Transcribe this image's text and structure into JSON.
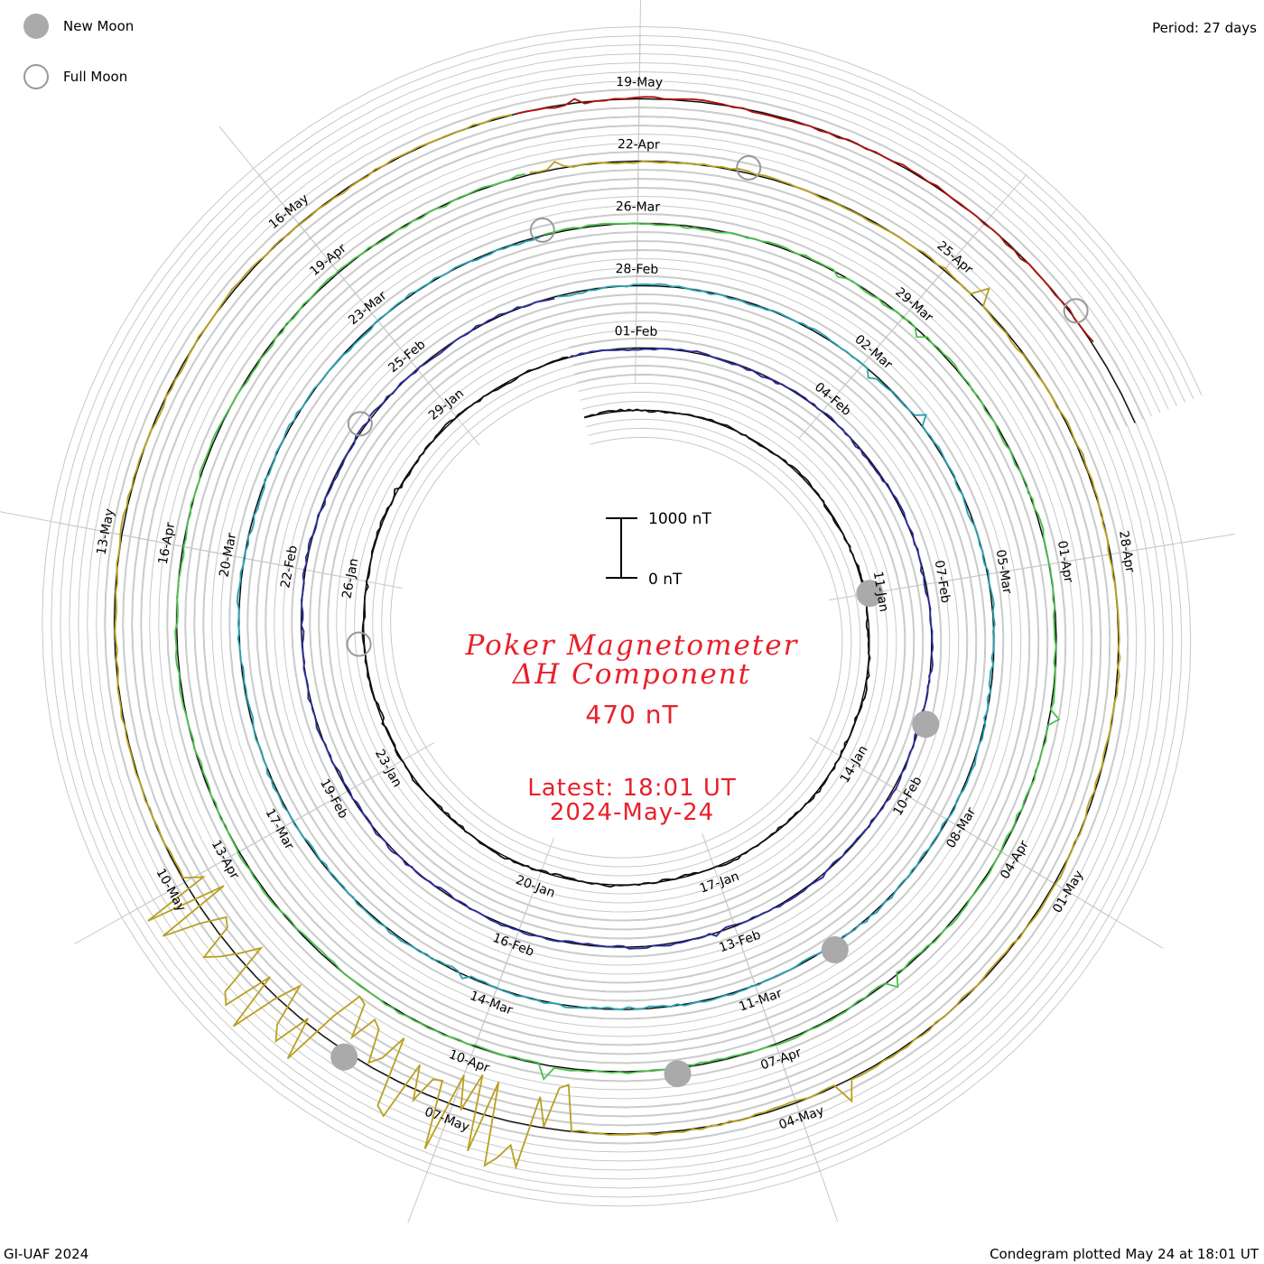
{
  "legend": {
    "new_moon_label": "New Moon",
    "full_moon_label": "Full Moon"
  },
  "period_text": "Period: 27 days",
  "footer_left": "GI-UAF 2024",
  "footer_right": "Condegram plotted May 24 at 18:01 UT",
  "title": {
    "line1": "Poker Magnetometer",
    "line2": "ΔH Component",
    "value": "470 nT",
    "latest": "Latest: 18:01 UT",
    "date": "2024-May-24"
  },
  "scale": {
    "top_label": "1000 nT",
    "bottom_label": "0 nT"
  },
  "colors": {
    "title": "#e8202a",
    "new_moon": "#aaaaaa",
    "full_moon": "#999999",
    "grid": "#bbbbbb"
  },
  "chart_data": {
    "type": "line",
    "chart_form": "spiral condegram (one revolution per 27-day period)",
    "period_days": 27,
    "unit": "nT",
    "scale_bar_nT": [
      0,
      1000
    ],
    "latest_value_nT": 470,
    "series": [
      {
        "color": "#111111",
        "start": "2024-Jan-04",
        "end": "2024-Jan-31",
        "typical_nT": 0,
        "peak_nT": 150
      },
      {
        "color": "#2a2a9a",
        "start": "2024-Jan-31",
        "end": "2024-Feb-27",
        "typical_nT": 0,
        "peak_nT": 250
      },
      {
        "color": "#2aa0b0",
        "start": "2024-Feb-27",
        "end": "2024-Mar-25",
        "typical_nT": 0,
        "peak_nT": 600
      },
      {
        "color": "#4cc04c",
        "start": "2024-Mar-25",
        "end": "2024-Apr-21",
        "typical_nT": 0,
        "peak_nT": 800
      },
      {
        "color": "#b8a020",
        "start": "2024-Apr-21",
        "end": "2024-May-18",
        "typical_nT": 0,
        "peak_nT": 1800
      },
      {
        "color": "#b01010",
        "start": "2024-May-18",
        "end": "2024-May-24",
        "typical_nT": 0,
        "peak_nT": 900
      }
    ],
    "date_labels": [
      {
        "text": "11-Jan",
        "day": 7
      },
      {
        "text": "14-Jan",
        "day": 10
      },
      {
        "text": "17-Jan",
        "day": 13
      },
      {
        "text": "20-Jan",
        "day": 16
      },
      {
        "text": "23-Jan",
        "day": 19
      },
      {
        "text": "26-Jan",
        "day": 22
      },
      {
        "text": "29-Jan",
        "day": 25
      },
      {
        "text": "01-Feb",
        "day": 28
      },
      {
        "text": "04-Feb",
        "day": 31
      },
      {
        "text": "07-Feb",
        "day": 34
      },
      {
        "text": "10-Feb",
        "day": 37
      },
      {
        "text": "13-Feb",
        "day": 40
      },
      {
        "text": "16-Feb",
        "day": 43
      },
      {
        "text": "19-Feb",
        "day": 46
      },
      {
        "text": "22-Feb",
        "day": 49
      },
      {
        "text": "25-Feb",
        "day": 52
      },
      {
        "text": "28-Feb",
        "day": 55
      },
      {
        "text": "02-Mar",
        "day": 58
      },
      {
        "text": "05-Mar",
        "day": 61
      },
      {
        "text": "08-Mar",
        "day": 64
      },
      {
        "text": "11-Mar",
        "day": 67
      },
      {
        "text": "14-Mar",
        "day": 70
      },
      {
        "text": "17-Mar",
        "day": 73
      },
      {
        "text": "20-Mar",
        "day": 76
      },
      {
        "text": "23-Mar",
        "day": 79
      },
      {
        "text": "26-Mar",
        "day": 82
      },
      {
        "text": "29-Mar",
        "day": 85
      },
      {
        "text": "01-Apr",
        "day": 88
      },
      {
        "text": "04-Apr",
        "day": 91
      },
      {
        "text": "07-Apr",
        "day": 94
      },
      {
        "text": "10-Apr",
        "day": 97
      },
      {
        "text": "13-Apr",
        "day": 100
      },
      {
        "text": "16-Apr",
        "day": 103
      },
      {
        "text": "19-Apr",
        "day": 106
      },
      {
        "text": "22-Apr",
        "day": 109
      },
      {
        "text": "25-Apr",
        "day": 112
      },
      {
        "text": "28-Apr",
        "day": 115
      },
      {
        "text": "01-May",
        "day": 118
      },
      {
        "text": "04-May",
        "day": 121
      },
      {
        "text": "07-May",
        "day": 124
      },
      {
        "text": "10-May",
        "day": 127
      },
      {
        "text": "13-May",
        "day": 130
      },
      {
        "text": "16-May",
        "day": 133
      },
      {
        "text": "19-May",
        "day": 136
      }
    ],
    "new_moons": [
      {
        "date": "2024-Jan-11",
        "day": 7
      },
      {
        "date": "2024-Feb-09",
        "day": 36
      },
      {
        "date": "2024-Mar-10",
        "day": 66
      },
      {
        "date": "2024-Apr-08",
        "day": 95
      },
      {
        "date": "2024-May-08",
        "day": 125
      }
    ],
    "full_moons": [
      {
        "date": "2024-Jan-25",
        "day": 21
      },
      {
        "date": "2024-Feb-24",
        "day": 51
      },
      {
        "date": "2024-Mar-25",
        "day": 81
      },
      {
        "date": "2024-Apr-23",
        "day": 110
      },
      {
        "date": "2024-May-23",
        "day": 140
      }
    ],
    "end_day": 141
  }
}
